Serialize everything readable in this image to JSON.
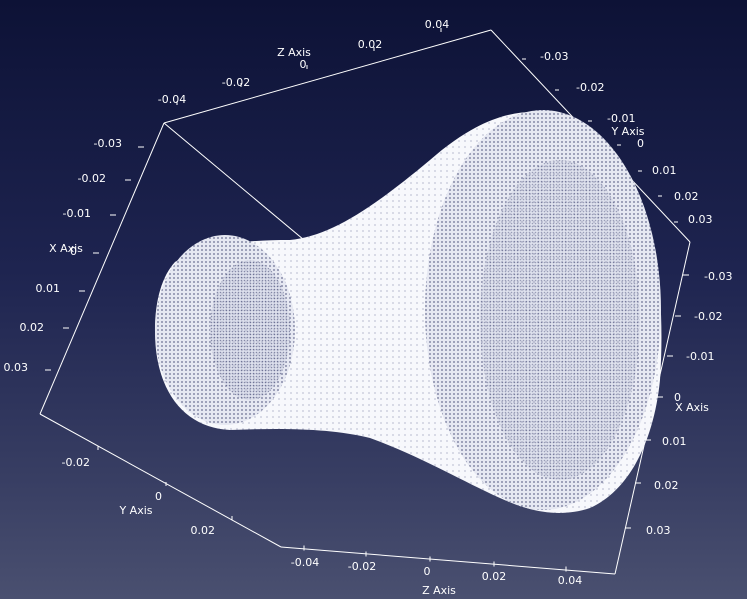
{
  "scene": {
    "background_top": "#0d1236",
    "background_bottom": "#4a5070",
    "axes_color": "#ffffff",
    "point_color": "#ffffff"
  },
  "axes": {
    "top_z": {
      "title": "Z Axis",
      "ticks": [
        "-0.04",
        "-0.02",
        "0",
        "0.02",
        "0.04"
      ]
    },
    "right_y": {
      "title": "Y Axis",
      "ticks": [
        "-0.03",
        "-0.02",
        "-0.01",
        "0",
        "0.01",
        "0.02",
        "0.03"
      ]
    },
    "left_x": {
      "title": "X Axis",
      "ticks": [
        "-0.03",
        "-0.02",
        "-0.01",
        "0",
        "0.01",
        "0.02",
        "0.03"
      ]
    },
    "right_x": {
      "title": "X Axis",
      "ticks": [
        "-0.03",
        "-0.02",
        "-0.01",
        "0",
        "0.01",
        "0.02",
        "0.03"
      ]
    },
    "bottom_left_y": {
      "title": "Y Axis",
      "ticks": [
        "-0.02",
        "0",
        "0.02"
      ]
    },
    "bottom_z": {
      "title": "Z Axis",
      "ticks": [
        "-0.04",
        "-0.02",
        "0",
        "0.02",
        "0.04"
      ]
    }
  }
}
